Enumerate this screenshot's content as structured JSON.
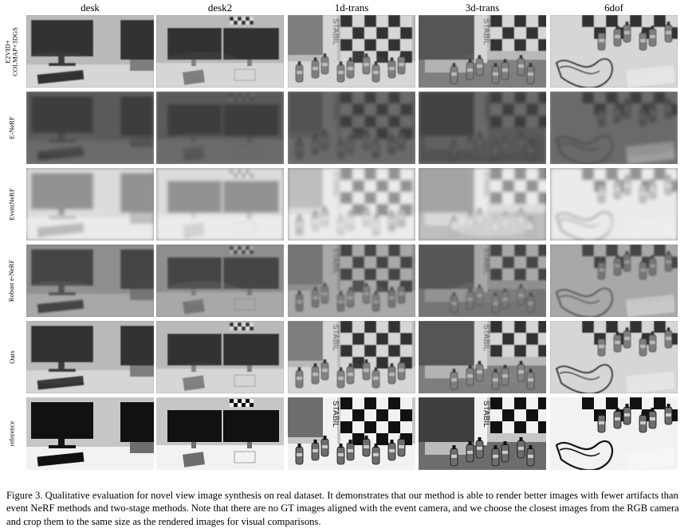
{
  "columns": [
    "desk",
    "desk2",
    "1d-trans",
    "3d-trans",
    "6dof"
  ],
  "rows": [
    {
      "label": "E2VID+\nCOLMAP+3DGS",
      "tone": "clear"
    },
    {
      "label": "E-NeRF",
      "tone": "murky"
    },
    {
      "label": "EventNeRF",
      "tone": "washed"
    },
    {
      "label": "Robust e-NeRF",
      "tone": "gray"
    },
    {
      "label": "Ours",
      "tone": "clear"
    },
    {
      "label": "reference",
      "tone": "sharp"
    }
  ],
  "scene_text": {
    "stabil": "STABIL"
  },
  "caption": "Figure 3. Qualitative evaluation for novel view image synthesis on real dataset. It demonstrates that our method is able to render better images with fewer artifacts than event NeRF methods and two-stage methods. Note that there are no GT images aligned with the event camera, and we choose the closest images from the RGB camera and crop them to the same size as the rendered images for visual comparisons."
}
